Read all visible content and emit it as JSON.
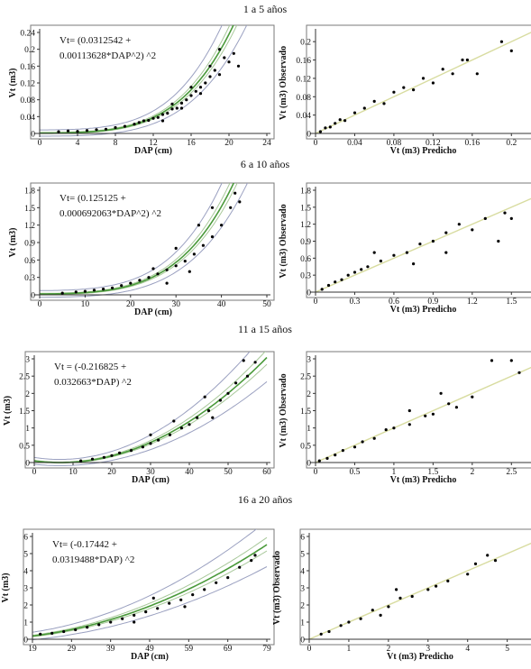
{
  "figure": {
    "colors": {
      "points": "#000000",
      "fit_line": "#4a9a3a",
      "confidence_band": "#a8c89a",
      "prediction_band": "#9aa0c0",
      "identity_line": "#d8dca0"
    }
  },
  "chart_data": [
    {
      "type": "scatter",
      "row_title": "1 a 5 años",
      "panel": "left",
      "equation_lines": [
        "Vt= (0.0312542 +",
        "0.00113628*DAP^2) ^2"
      ],
      "xlabel": "DAP (cm)",
      "ylabel": "Vt (m3)",
      "xlim": [
        0,
        24
      ],
      "ylim": [
        0,
        0.24
      ],
      "xticks": [
        0,
        4,
        8,
        12,
        16,
        20,
        24
      ],
      "xtick_labels": [
        "0",
        "4",
        "8",
        "12",
        "16",
        "20",
        "24"
      ],
      "yticks": [
        0,
        0.04,
        0.08,
        0.12,
        0.16,
        0.2,
        0.24
      ],
      "ytick_labels": [
        "0",
        "0.04",
        "0.08",
        "0.12",
        "0.16",
        "0.2",
        "0.24"
      ],
      "model": {
        "form": "(a + b*DAP^2)^2",
        "a": 0.0312542,
        "b": 0.00113628
      },
      "points": [
        [
          2.0,
          0.004
        ],
        [
          3.0,
          0.006
        ],
        [
          4.0,
          0.005
        ],
        [
          5.0,
          0.007
        ],
        [
          6.0,
          0.009
        ],
        [
          7.0,
          0.01
        ],
        [
          8.0,
          0.014
        ],
        [
          9.0,
          0.017
        ],
        [
          10.0,
          0.022
        ],
        [
          10.5,
          0.026
        ],
        [
          11.0,
          0.03
        ],
        [
          11.5,
          0.031
        ],
        [
          12.0,
          0.036
        ],
        [
          12.5,
          0.038
        ],
        [
          13.0,
          0.045
        ],
        [
          13.5,
          0.048
        ],
        [
          14.0,
          0.058
        ],
        [
          14.5,
          0.06
        ],
        [
          15.0,
          0.072
        ],
        [
          15.5,
          0.08
        ],
        [
          16.0,
          0.09
        ],
        [
          16.5,
          0.1
        ],
        [
          17.0,
          0.11
        ],
        [
          17.5,
          0.12
        ],
        [
          18.0,
          0.135
        ],
        [
          18.5,
          0.15
        ],
        [
          19.0,
          0.2
        ],
        [
          19.5,
          0.18
        ],
        [
          20.0,
          0.17
        ],
        [
          20.5,
          0.19
        ],
        [
          21.0,
          0.16
        ],
        [
          13.0,
          0.03
        ],
        [
          15.0,
          0.06
        ],
        [
          14.0,
          0.07
        ],
        [
          16.0,
          0.11
        ],
        [
          17.0,
          0.095
        ],
        [
          18.0,
          0.16
        ],
        [
          19.0,
          0.14
        ]
      ]
    },
    {
      "type": "scatter",
      "row_title": "1 a 5 años",
      "panel": "right",
      "xlabel": "Vt (m3) Predicho",
      "ylabel": "Vt (m3) Observado",
      "xlim": [
        0,
        0.22
      ],
      "ylim": [
        0,
        0.22
      ],
      "xticks": [
        0,
        0.04,
        0.08,
        0.12,
        0.16,
        0.2
      ],
      "xtick_labels": [
        "0",
        "0.04",
        "0.08",
        "0.12",
        "0.16",
        "0.2"
      ],
      "yticks": [
        0,
        0.04,
        0.08,
        0.12,
        0.16,
        0.2
      ],
      "ytick_labels": [
        "0",
        "0.04",
        "0.08",
        "0.12",
        "0.16",
        "0.2"
      ],
      "points": [
        [
          0.005,
          0.004
        ],
        [
          0.01,
          0.012
        ],
        [
          0.015,
          0.014
        ],
        [
          0.02,
          0.022
        ],
        [
          0.025,
          0.03
        ],
        [
          0.03,
          0.028
        ],
        [
          0.04,
          0.045
        ],
        [
          0.05,
          0.055
        ],
        [
          0.06,
          0.07
        ],
        [
          0.07,
          0.065
        ],
        [
          0.08,
          0.09
        ],
        [
          0.09,
          0.1
        ],
        [
          0.1,
          0.095
        ],
        [
          0.11,
          0.12
        ],
        [
          0.12,
          0.11
        ],
        [
          0.13,
          0.14
        ],
        [
          0.14,
          0.13
        ],
        [
          0.15,
          0.16
        ],
        [
          0.155,
          0.16
        ],
        [
          0.165,
          0.13
        ],
        [
          0.19,
          0.2
        ],
        [
          0.2,
          0.18
        ]
      ]
    },
    {
      "type": "scatter",
      "row_title": "6 a 10 años",
      "panel": "left",
      "equation_lines": [
        "Vt= (0.125125 +",
        "0.000692063*DAP^2) ^2"
      ],
      "xlabel": "DAP (cm)",
      "ylabel": "Vt (m3)",
      "xlim": [
        0,
        50
      ],
      "ylim": [
        0,
        1.8
      ],
      "xticks": [
        0,
        10,
        20,
        30,
        40,
        50
      ],
      "xtick_labels": [
        "0",
        "10",
        "20",
        "30",
        "40",
        "50"
      ],
      "yticks": [
        0,
        0.3,
        0.6,
        0.9,
        1.2,
        1.5,
        1.8
      ],
      "ytick_labels": [
        "0",
        "0.3",
        "0.6",
        "0.9",
        "1.2",
        "1.5",
        "1.8"
      ],
      "model": {
        "form": "(a + b*DAP^2)^2",
        "a": 0.125125,
        "b": 0.000692063
      },
      "points": [
        [
          5,
          0.03
        ],
        [
          8,
          0.05
        ],
        [
          10,
          0.06
        ],
        [
          12,
          0.08
        ],
        [
          14,
          0.1
        ],
        [
          16,
          0.12
        ],
        [
          18,
          0.16
        ],
        [
          20,
          0.2
        ],
        [
          22,
          0.25
        ],
        [
          24,
          0.3
        ],
        [
          26,
          0.36
        ],
        [
          28,
          0.43
        ],
        [
          30,
          0.5
        ],
        [
          32,
          0.58
        ],
        [
          34,
          0.7
        ],
        [
          36,
          0.85
        ],
        [
          38,
          1.0
        ],
        [
          40,
          1.2
        ],
        [
          42,
          1.5
        ],
        [
          43,
          1.75
        ],
        [
          44,
          1.6
        ],
        [
          35,
          1.2
        ],
        [
          38,
          1.5
        ],
        [
          30,
          0.8
        ],
        [
          33,
          0.4
        ],
        [
          25,
          0.45
        ],
        [
          28,
          0.2
        ]
      ]
    },
    {
      "type": "scatter",
      "row_title": "6 a 10 años",
      "panel": "right",
      "xlabel": "Vt (m3) Predicho",
      "ylabel": "Vt (m3) Observado",
      "xlim": [
        0,
        1.65
      ],
      "ylim": [
        0,
        1.8
      ],
      "xticks": [
        0,
        0.3,
        0.6,
        0.9,
        1.2,
        1.5
      ],
      "xtick_labels": [
        "0",
        "0.3",
        "0.6",
        "0.9",
        "1.2",
        "1.5"
      ],
      "yticks": [
        0,
        0.3,
        0.6,
        0.9,
        1.2,
        1.5,
        1.8
      ],
      "ytick_labels": [
        "0",
        "0.3",
        "0.6",
        "0.9",
        "1.2",
        "1.5",
        "1.8"
      ],
      "points": [
        [
          0.05,
          0.05
        ],
        [
          0.1,
          0.12
        ],
        [
          0.15,
          0.18
        ],
        [
          0.2,
          0.22
        ],
        [
          0.25,
          0.3
        ],
        [
          0.3,
          0.35
        ],
        [
          0.35,
          0.4
        ],
        [
          0.4,
          0.45
        ],
        [
          0.5,
          0.55
        ],
        [
          0.6,
          0.65
        ],
        [
          0.7,
          0.7
        ],
        [
          0.8,
          0.85
        ],
        [
          0.9,
          0.9
        ],
        [
          1.0,
          1.05
        ],
        [
          1.1,
          1.2
        ],
        [
          1.2,
          1.1
        ],
        [
          1.3,
          1.3
        ],
        [
          1.45,
          1.4
        ],
        [
          1.5,
          1.3
        ],
        [
          1.4,
          0.9
        ],
        [
          1.0,
          0.7
        ],
        [
          0.75,
          0.5
        ],
        [
          0.45,
          0.7
        ]
      ]
    },
    {
      "type": "scatter",
      "row_title": "11 a 15 años",
      "panel": "left",
      "equation_lines": [
        "Vt = (-0.216825 +",
        "0.032663*DAP) ^2"
      ],
      "xlabel": "DAP (cm)",
      "ylabel": "Vt (m3)",
      "xlim": [
        0,
        60
      ],
      "ylim": [
        0,
        3
      ],
      "xticks": [
        0,
        10,
        20,
        30,
        40,
        50,
        60
      ],
      "xtick_labels": [
        "0",
        "10",
        "20",
        "30",
        "40",
        "50",
        "60"
      ],
      "yticks": [
        0,
        0.5,
        1,
        1.5,
        2,
        2.5,
        3
      ],
      "ytick_labels": [
        "0",
        "0.5",
        "1",
        "1.5",
        "2",
        "2.5",
        "3"
      ],
      "model": {
        "form": "(a + b*DAP)^2",
        "a": -0.216825,
        "b": 0.032663
      },
      "points": [
        [
          12,
          0.05
        ],
        [
          15,
          0.1
        ],
        [
          18,
          0.15
        ],
        [
          20,
          0.2
        ],
        [
          22,
          0.28
        ],
        [
          25,
          0.35
        ],
        [
          28,
          0.45
        ],
        [
          30,
          0.55
        ],
        [
          32,
          0.65
        ],
        [
          35,
          0.8
        ],
        [
          38,
          1.0
        ],
        [
          40,
          1.1
        ],
        [
          42,
          1.3
        ],
        [
          45,
          1.5
        ],
        [
          48,
          1.8
        ],
        [
          50,
          2.0
        ],
        [
          52,
          2.3
        ],
        [
          54,
          2.95
        ],
        [
          55,
          2.5
        ],
        [
          57,
          2.9
        ],
        [
          44,
          1.9
        ],
        [
          46,
          1.3
        ],
        [
          36,
          1.2
        ],
        [
          30,
          0.8
        ]
      ]
    },
    {
      "type": "scatter",
      "row_title": "11 a 15 años",
      "panel": "right",
      "xlabel": "Vt (m3) Predicho",
      "ylabel": "Vt (m3) Observado",
      "xlim": [
        0,
        2.75
      ],
      "ylim": [
        0,
        3
      ],
      "xticks": [
        0,
        0.5,
        1,
        1.5,
        2,
        2.5
      ],
      "xtick_labels": [
        "0",
        "0.5",
        "1",
        "1.5",
        "2",
        "2.5"
      ],
      "yticks": [
        0,
        0.5,
        1,
        1.5,
        2,
        2.5,
        3
      ],
      "ytick_labels": [
        "0",
        "0.5",
        "1",
        "1.5",
        "2",
        "2.5",
        "3"
      ],
      "points": [
        [
          0.05,
          0.05
        ],
        [
          0.15,
          0.12
        ],
        [
          0.25,
          0.22
        ],
        [
          0.35,
          0.35
        ],
        [
          0.5,
          0.45
        ],
        [
          0.6,
          0.6
        ],
        [
          0.75,
          0.7
        ],
        [
          0.9,
          0.95
        ],
        [
          1.0,
          1.0
        ],
        [
          1.2,
          1.1
        ],
        [
          1.4,
          1.35
        ],
        [
          1.5,
          1.4
        ],
        [
          1.7,
          1.7
        ],
        [
          1.8,
          1.6
        ],
        [
          2.0,
          1.9
        ],
        [
          2.25,
          2.95
        ],
        [
          2.5,
          2.95
        ],
        [
          2.6,
          2.6
        ],
        [
          1.6,
          2.0
        ],
        [
          1.2,
          1.5
        ]
      ]
    },
    {
      "type": "scatter",
      "row_title": "16 a 20 años",
      "panel": "left",
      "equation_lines": [
        "Vt= (-0.17442 +",
        "0.0319488*DAP) ^2"
      ],
      "xlabel": "DAP (cm)",
      "ylabel": "Vt (m3)",
      "xlim": [
        19,
        79
      ],
      "ylim": [
        0,
        6
      ],
      "xticks": [
        19,
        29,
        39,
        49,
        59,
        69,
        79
      ],
      "xtick_labels": [
        "19",
        "29",
        "39",
        "49",
        "59",
        "69",
        "79"
      ],
      "yticks": [
        0,
        1,
        2,
        3,
        4,
        5,
        6
      ],
      "ytick_labels": [
        "0",
        "1",
        "2",
        "3",
        "4",
        "5",
        "6"
      ],
      "model": {
        "form": "(a + b*DAP)^2",
        "a": -0.17442,
        "b": 0.0319488
      },
      "points": [
        [
          21,
          0.3
        ],
        [
          24,
          0.35
        ],
        [
          27,
          0.45
        ],
        [
          30,
          0.55
        ],
        [
          33,
          0.7
        ],
        [
          36,
          0.85
        ],
        [
          39,
          1.0
        ],
        [
          42,
          1.2
        ],
        [
          45,
          1.4
        ],
        [
          48,
          1.6
        ],
        [
          51,
          1.8
        ],
        [
          54,
          2.1
        ],
        [
          57,
          2.3
        ],
        [
          60,
          2.6
        ],
        [
          63,
          2.9
        ],
        [
          66,
          3.3
        ],
        [
          69,
          3.6
        ],
        [
          72,
          4.2
        ],
        [
          75,
          4.6
        ],
        [
          76,
          4.9
        ],
        [
          50,
          2.4
        ],
        [
          45,
          1.0
        ],
        [
          58,
          1.9
        ]
      ]
    },
    {
      "type": "scatter",
      "row_title": "16 a 20 años",
      "panel": "right",
      "xlabel": "Vt (m3) Predicho",
      "ylabel": "Vt (m3) Observado",
      "xlim": [
        0,
        5.6
      ],
      "ylim": [
        0,
        6
      ],
      "xticks": [
        0,
        1,
        2,
        3,
        4,
        5
      ],
      "xtick_labels": [
        "0",
        "1",
        "2",
        "3",
        "4",
        "5"
      ],
      "yticks": [
        0,
        1,
        2,
        3,
        4,
        5,
        6
      ],
      "ytick_labels": [
        "0",
        "1",
        "2",
        "3",
        "4",
        "5",
        "6"
      ],
      "points": [
        [
          0.3,
          0.3
        ],
        [
          0.5,
          0.45
        ],
        [
          0.8,
          0.8
        ],
        [
          1.0,
          1.0
        ],
        [
          1.3,
          1.2
        ],
        [
          1.6,
          1.7
        ],
        [
          2.0,
          1.9
        ],
        [
          2.3,
          2.4
        ],
        [
          2.6,
          2.5
        ],
        [
          3.0,
          2.9
        ],
        [
          3.2,
          3.1
        ],
        [
          3.5,
          3.4
        ],
        [
          4.0,
          3.8
        ],
        [
          4.2,
          4.4
        ],
        [
          4.5,
          4.9
        ],
        [
          4.7,
          4.6
        ],
        [
          2.2,
          2.9
        ],
        [
          1.8,
          1.4
        ]
      ]
    }
  ]
}
